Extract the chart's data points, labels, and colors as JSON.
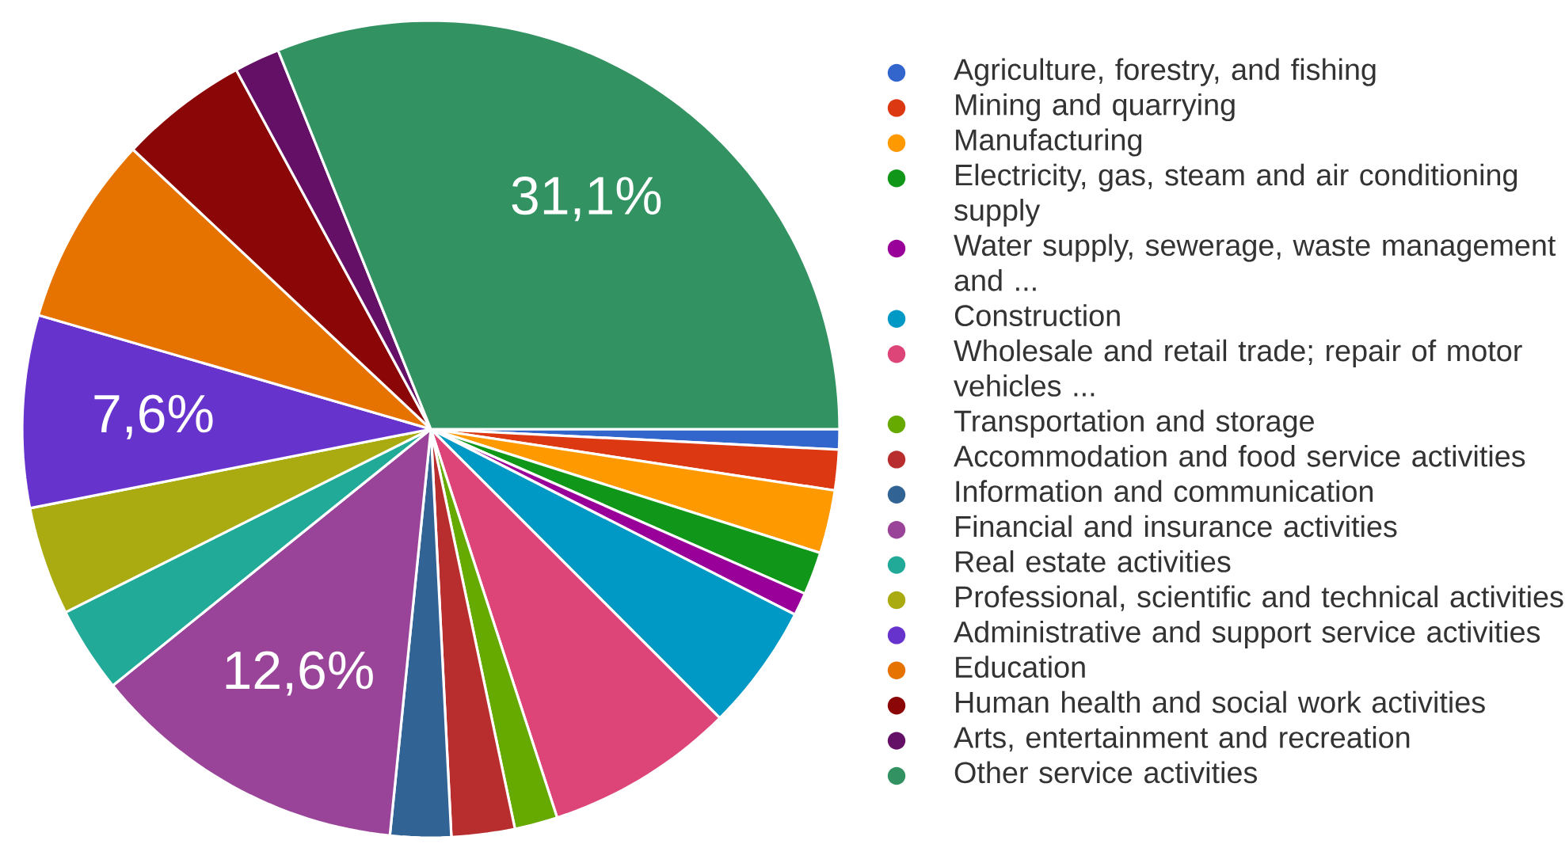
{
  "chart_data": {
    "type": "pie",
    "legend": "right",
    "categories": [
      "Agriculture, forestry, and fishing",
      "Mining and quarrying",
      "Manufacturing",
      "Electricity, gas, steam and air conditioning supply",
      "Water supply, sewerage, waste management and ...",
      "Construction",
      "Wholesale and retail trade; repair of motor vehicles ...",
      "Transportation and storage",
      "Accommodation and food service activities",
      "Information and communication",
      "Financial and insurance activities",
      "Real estate activities",
      "Professional, scientific and technical activities",
      "Administrative and support service activities",
      "Education",
      "Human health and social work activities",
      "Arts, entertainment and recreation",
      "Other service activities"
    ],
    "values": [
      0.8,
      1.6,
      2.5,
      1.7,
      0.9,
      5.0,
      7.5,
      1.7,
      2.5,
      2.4,
      12.6,
      3.4,
      4.3,
      7.6,
      7.5,
      5.1,
      1.8,
      31.1
    ],
    "value_labels": [
      null,
      null,
      null,
      null,
      null,
      null,
      null,
      null,
      null,
      null,
      "12,6%",
      null,
      null,
      "7,6%",
      null,
      null,
      null,
      "31,1%"
    ],
    "colors": [
      "#3366cc",
      "#dc3912",
      "#ff9900",
      "#109618",
      "#990099",
      "#0099c6",
      "#dd4477",
      "#66aa00",
      "#b82e2e",
      "#316395",
      "#994499",
      "#22aa99",
      "#aaaa11",
      "#6633cc",
      "#e67300",
      "#8b0707",
      "#651067",
      "#329262"
    ]
  }
}
